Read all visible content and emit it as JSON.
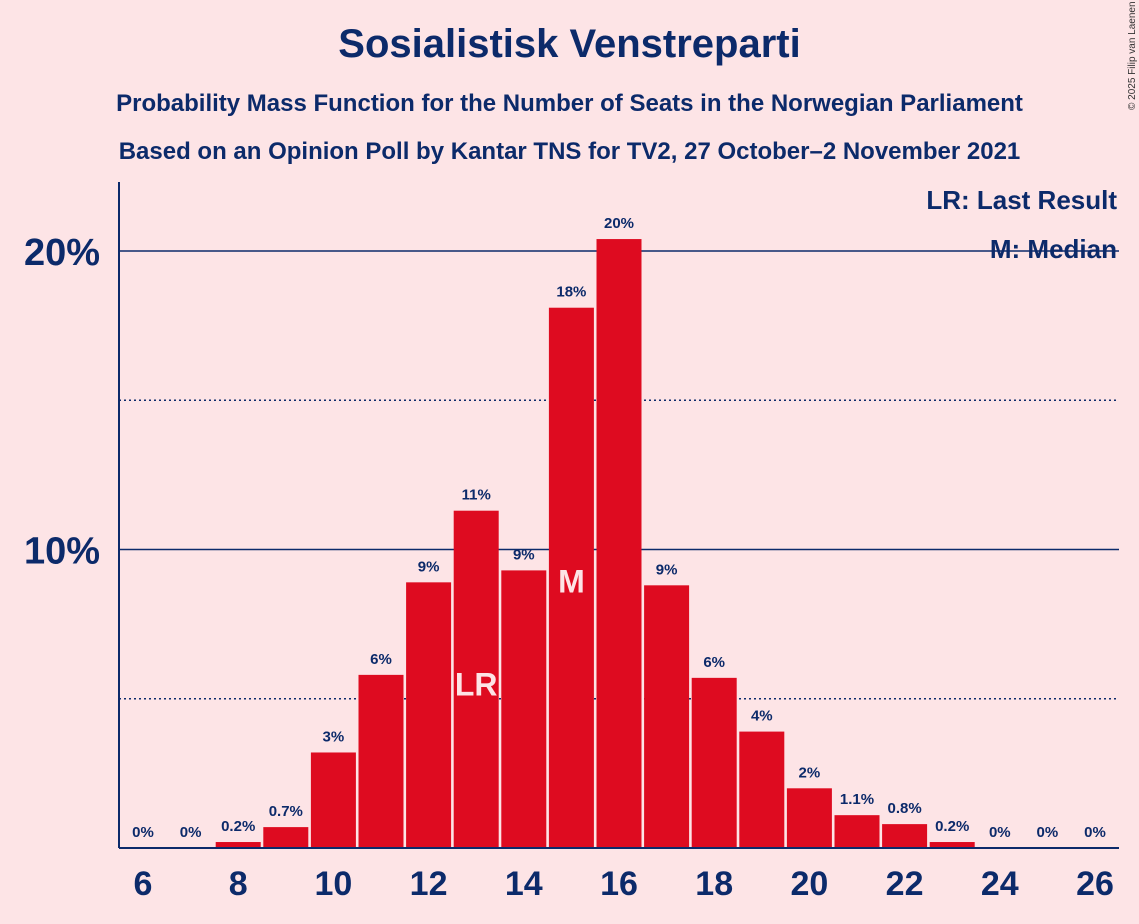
{
  "title": "Sosialistisk Venstreparti",
  "subtitle1": "Probability Mass Function for the Number of Seats in the Norwegian Parliament",
  "subtitle2": "Based on an Opinion Poll by Kantar TNS for TV2, 27 October–2 November 2021",
  "copyright": "© 2025 Filip van Laenen",
  "colors": {
    "bar": "#DE0B20",
    "axis": "#0C2A6A",
    "background": "#FDE4E6"
  },
  "chart_data": {
    "type": "bar",
    "xlabel": "",
    "ylabel": "",
    "x": [
      6,
      7,
      8,
      9,
      10,
      11,
      12,
      13,
      14,
      15,
      16,
      17,
      18,
      19,
      20,
      21,
      22,
      23,
      24,
      25,
      26
    ],
    "values": [
      0,
      0,
      0.2,
      0.7,
      3.2,
      5.8,
      8.9,
      11.3,
      9.3,
      18.1,
      20.4,
      8.8,
      5.7,
      3.9,
      2.0,
      1.1,
      0.8,
      0.2,
      0,
      0,
      0
    ],
    "labels": [
      "0%",
      "0%",
      "0.2%",
      "0.7%",
      "3%",
      "6%",
      "9%",
      "11%",
      "9%",
      "18%",
      "20%",
      "9%",
      "6%",
      "4%",
      "2%",
      "1.1%",
      "0.8%",
      "0.2%",
      "0%",
      "0%",
      "0%"
    ],
    "x_ticks": [
      "6",
      "8",
      "10",
      "12",
      "14",
      "16",
      "18",
      "20",
      "22",
      "24",
      "26"
    ],
    "y_ticks": [
      {
        "value": 10,
        "label": "10%"
      },
      {
        "value": 20,
        "label": "20%"
      }
    ],
    "minor_gridlines": [
      5,
      15
    ],
    "ylim": [
      0,
      22.3
    ],
    "last_result": {
      "seat": 13,
      "marker": "LR"
    },
    "median": {
      "seat": 15,
      "marker": "M"
    },
    "legend": {
      "placement": "top-right",
      "entries": [
        "LR: Last Result",
        "M: Median"
      ]
    }
  }
}
